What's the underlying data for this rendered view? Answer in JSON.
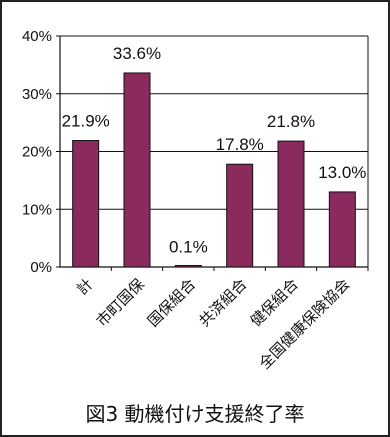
{
  "chart_data": {
    "type": "bar",
    "categories": [
      "計",
      "市町国保",
      "国保組合",
      "共済組合",
      "健保組合",
      "全国健康保険協会"
    ],
    "values": [
      21.9,
      33.6,
      0.1,
      17.8,
      21.8,
      13.0
    ],
    "data_labels": [
      "21.9%",
      "33.6%",
      "0.1%",
      "17.8%",
      "21.8%",
      "13.0%"
    ],
    "yticks": [
      "0%",
      "10%",
      "20%",
      "30%",
      "40%"
    ],
    "ylim": [
      0,
      40
    ],
    "grid": true,
    "bar_color": "#8B2A5C",
    "caption": "図3  動機付け支援終了率"
  }
}
